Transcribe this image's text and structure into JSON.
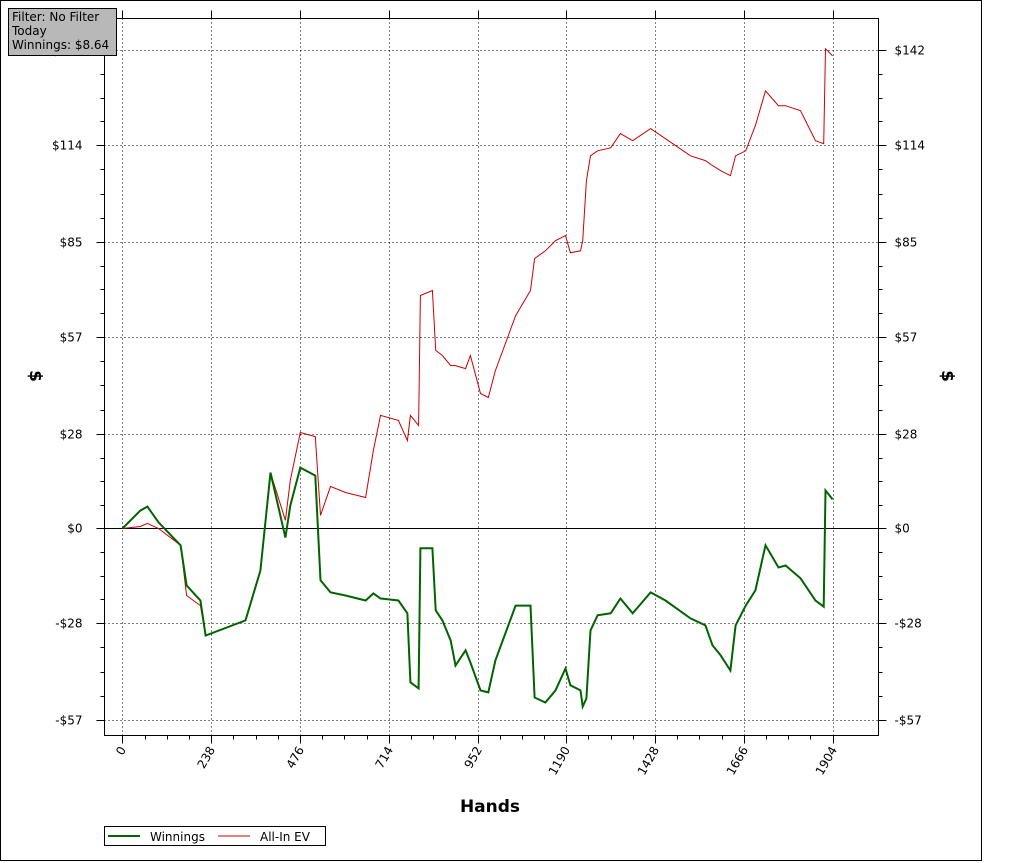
{
  "chart_data": {
    "type": "line",
    "annotations": [
      "Filter: No Filter",
      "Today",
      "Winnings: $8.64"
    ],
    "xlabel": "Hands",
    "ylabel": "$",
    "grid": true,
    "legend": "bottom-left",
    "xlim": [
      -48,
      2027
    ],
    "ylim": [
      -61.5,
      151.5
    ],
    "xticks": [
      0,
      238,
      476,
      714,
      952,
      1190,
      1428,
      1666,
      1904
    ],
    "yticks": [
      {
        "value": -57,
        "label": "-$57"
      },
      {
        "value": -28,
        "label": "-$28"
      },
      {
        "value": 0,
        "label": "$0"
      },
      {
        "value": 28,
        "label": "$28"
      },
      {
        "value": 57,
        "label": "$57"
      },
      {
        "value": 85,
        "label": "$85"
      },
      {
        "value": 114,
        "label": "$114"
      },
      {
        "value": 142,
        "label": "$142"
      }
    ],
    "x": [
      0,
      48,
      67,
      97,
      156,
      172,
      209,
      223,
      330,
      370,
      397,
      437,
      450,
      477,
      517,
      531,
      558,
      598,
      652,
      673,
      692,
      740,
      764,
      772,
      794,
      799,
      831,
      840,
      858,
      880,
      893,
      920,
      933,
      960,
      981,
      1000,
      1054,
      1094,
      1105,
      1134,
      1161,
      1188,
      1201,
      1228,
      1234,
      1244,
      1255,
      1274,
      1309,
      1335,
      1368,
      1416,
      1456,
      1523,
      1563,
      1582,
      1604,
      1630,
      1644,
      1671,
      1697,
      1724,
      1759,
      1778,
      1818,
      1858,
      1880,
      1885,
      1904
    ],
    "series": [
      {
        "name": "Winnings",
        "color": "#006400",
        "values": [
          0,
          5.3,
          6.5,
          1.8,
          -5.0,
          -16.9,
          -21.4,
          -31.8,
          -27.3,
          -12.5,
          16.6,
          -2.7,
          6.8,
          18.1,
          15.7,
          -15.4,
          -19.0,
          -19.9,
          -21.4,
          -19.3,
          -20.8,
          -21.4,
          -25.2,
          -45.7,
          -47.5,
          -5.9,
          -5.9,
          -24.3,
          -27.3,
          -33.3,
          -40.7,
          -36.2,
          -39.8,
          -48.1,
          -48.7,
          -39.2,
          -22.9,
          -22.9,
          -50.2,
          -51.7,
          -48.1,
          -41.6,
          -46.6,
          -48.1,
          -52.9,
          -50.5,
          -30.3,
          -25.8,
          -25.2,
          -20.8,
          -25.2,
          -19.0,
          -21.4,
          -26.7,
          -28.8,
          -34.7,
          -37.7,
          -42.2,
          -28.8,
          -22.9,
          -18.4,
          -5.0,
          -11.6,
          -11.0,
          -14.8,
          -21.4,
          -23.2,
          11.3,
          8.64
        ]
      },
      {
        "name": "All-In EV",
        "color": "#cc0000",
        "values": [
          0,
          0.6,
          1.5,
          0,
          -5.0,
          -19.9,
          -22.9,
          -31.8,
          -27.3,
          -12.5,
          16.6,
          2.4,
          14.3,
          28.5,
          27.3,
          3.9,
          12.5,
          10.7,
          9.2,
          23.2,
          33.6,
          32.1,
          26.1,
          33.6,
          30.6,
          69.2,
          70.7,
          52.9,
          51.4,
          48.4,
          48.4,
          47.5,
          51.4,
          40.1,
          38.9,
          46.9,
          63.2,
          70.7,
          80.2,
          82.5,
          85.5,
          87.0,
          81.9,
          82.5,
          85.5,
          103.3,
          110.7,
          112.2,
          113.1,
          117.3,
          115.2,
          118.8,
          115.8,
          110.7,
          109.3,
          107.8,
          106.3,
          104.8,
          110.7,
          112.2,
          119.7,
          130.0,
          125.6,
          125.6,
          124.1,
          115.2,
          114.3,
          142.5,
          140.4
        ]
      }
    ]
  }
}
